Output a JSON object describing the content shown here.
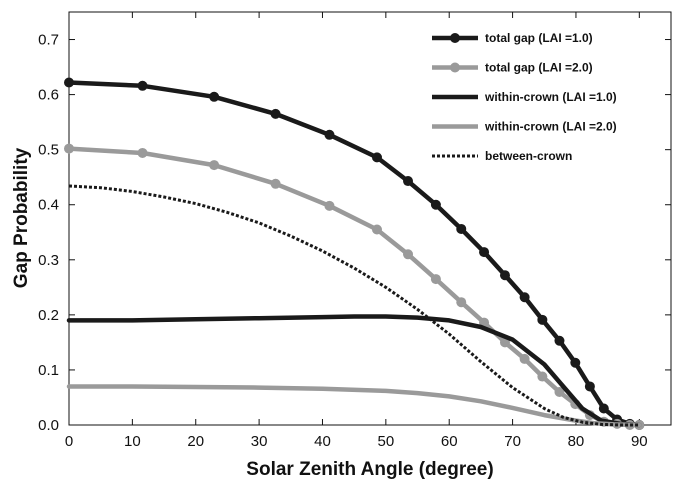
{
  "chart_data": {
    "type": "line",
    "title": "",
    "xlabel": "Solar Zenith Angle (degree)",
    "ylabel": "Gap Probability",
    "xlim": [
      0,
      95
    ],
    "ylim": [
      0,
      0.75
    ],
    "xticks": [
      0,
      10,
      20,
      30,
      40,
      50,
      60,
      70,
      80,
      90
    ],
    "yticks": [
      0.0,
      0.1,
      0.2,
      0.3,
      0.4,
      0.5,
      0.6,
      0.7
    ],
    "ytick_labels": [
      "0.0",
      "0.1",
      "0.2",
      "0.3",
      "0.4",
      "0.5",
      "0.6",
      "0.7"
    ],
    "grid": false,
    "legend_position": "top-right",
    "series": [
      {
        "name": "total gap (LAI =1.0)",
        "color": "#1a1a1a",
        "style": "solid-marker",
        "x": [
          0,
          11.6,
          22.9,
          32.6,
          41.1,
          48.6,
          53.5,
          57.9,
          61.9,
          65.5,
          68.8,
          71.9,
          74.7,
          77.4,
          79.9,
          82.2,
          84.4,
          86.5,
          88.5,
          90
        ],
        "y": [
          0.622,
          0.616,
          0.596,
          0.565,
          0.527,
          0.486,
          0.443,
          0.4,
          0.356,
          0.314,
          0.272,
          0.232,
          0.191,
          0.153,
          0.113,
          0.07,
          0.03,
          0.01,
          0.002,
          0.0
        ]
      },
      {
        "name": "total gap (LAI =2.0)",
        "color": "#9a9a9a",
        "style": "solid-marker",
        "x": [
          0,
          11.6,
          22.9,
          32.6,
          41.1,
          48.6,
          53.5,
          57.9,
          61.9,
          65.5,
          68.8,
          71.9,
          74.7,
          77.4,
          79.9,
          82.2,
          84.4,
          86.5,
          88.5,
          90
        ],
        "y": [
          0.502,
          0.494,
          0.472,
          0.438,
          0.398,
          0.355,
          0.31,
          0.265,
          0.223,
          0.186,
          0.15,
          0.12,
          0.088,
          0.06,
          0.038,
          0.018,
          0.006,
          0.002,
          0.0,
          0.0
        ]
      },
      {
        "name": "within-crown (LAI =1.0)",
        "color": "#1a1a1a",
        "style": "solid",
        "x": [
          0,
          10,
          20,
          30,
          40,
          45,
          50,
          55,
          60,
          65,
          70,
          75,
          78,
          81,
          84,
          87,
          90
        ],
        "y": [
          0.19,
          0.19,
          0.192,
          0.194,
          0.196,
          0.197,
          0.197,
          0.195,
          0.19,
          0.178,
          0.155,
          0.11,
          0.07,
          0.03,
          0.008,
          0.002,
          0.0
        ]
      },
      {
        "name": "within-crown (LAI =2.0)",
        "color": "#9a9a9a",
        "style": "solid",
        "x": [
          0,
          10,
          20,
          30,
          40,
          50,
          55,
          60,
          65,
          70,
          75,
          80,
          83,
          86,
          90
        ],
        "y": [
          0.07,
          0.07,
          0.069,
          0.068,
          0.066,
          0.062,
          0.058,
          0.052,
          0.043,
          0.031,
          0.018,
          0.008,
          0.003,
          0.001,
          0.0
        ]
      },
      {
        "name": "between-crown",
        "color": "#1a1a1a",
        "style": "dotted",
        "x": [
          0,
          5,
          10,
          15,
          20,
          25,
          30,
          35,
          40,
          45,
          50,
          55,
          60,
          65,
          70,
          75,
          78,
          81,
          84,
          87,
          90
        ],
        "y": [
          0.434,
          0.431,
          0.424,
          0.414,
          0.402,
          0.386,
          0.367,
          0.343,
          0.316,
          0.285,
          0.25,
          0.21,
          0.165,
          0.115,
          0.068,
          0.03,
          0.014,
          0.005,
          0.001,
          0.0,
          0.0
        ]
      }
    ]
  }
}
